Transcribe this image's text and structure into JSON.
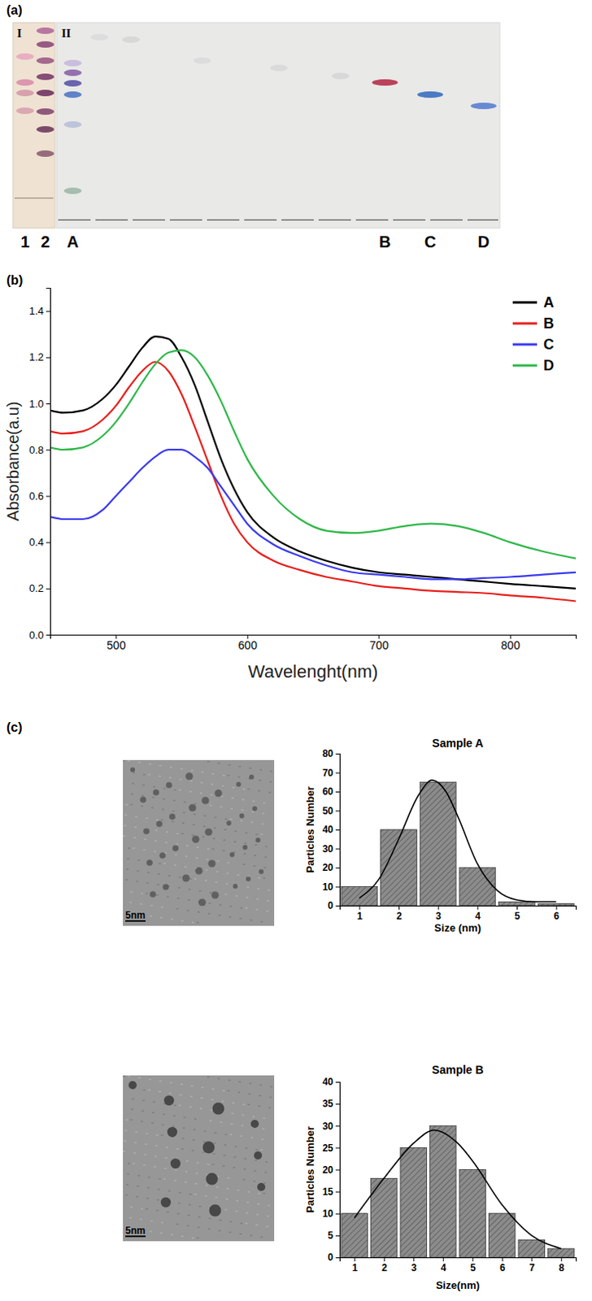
{
  "figure": {
    "panel_labels": [
      "(a)",
      "(b)",
      "(c)"
    ]
  },
  "tlc": {
    "plate_labels": [
      "I",
      "II"
    ],
    "lane_labels": [
      "1",
      "2",
      "A",
      "B",
      "C",
      "D"
    ]
  },
  "tem": {
    "scale_bar_labels": [
      "5nm",
      "5nm"
    ]
  },
  "chart_data": [
    {
      "type": "line",
      "x_label": "Wavelenght(nm)",
      "y_label": "Absorbance(a.u)",
      "x": [
        450,
        460,
        475,
        490,
        500,
        510,
        520,
        530,
        540,
        550,
        560,
        570,
        580,
        590,
        600,
        620,
        640,
        660,
        680,
        700,
        720,
        740,
        760,
        780,
        800,
        825,
        850
      ],
      "series": [
        {
          "name": "A",
          "color": "#000000",
          "values": [
            0.97,
            0.96,
            0.97,
            1.02,
            1.08,
            1.16,
            1.24,
            1.29,
            1.28,
            1.2,
            1.08,
            0.92,
            0.76,
            0.63,
            0.53,
            0.42,
            0.36,
            0.32,
            0.29,
            0.27,
            0.26,
            0.25,
            0.24,
            0.23,
            0.22,
            0.21,
            0.2
          ]
        },
        {
          "name": "B",
          "color": "#e8201c",
          "values": [
            0.88,
            0.87,
            0.88,
            0.93,
            0.99,
            1.07,
            1.14,
            1.18,
            1.14,
            1.04,
            0.9,
            0.75,
            0.6,
            0.48,
            0.4,
            0.32,
            0.28,
            0.25,
            0.23,
            0.21,
            0.2,
            0.19,
            0.185,
            0.18,
            0.17,
            0.16,
            0.145
          ]
        },
        {
          "name": "C",
          "color": "#3b3bf0",
          "values": [
            0.51,
            0.5,
            0.5,
            0.54,
            0.6,
            0.66,
            0.72,
            0.77,
            0.8,
            0.8,
            0.77,
            0.72,
            0.64,
            0.56,
            0.48,
            0.39,
            0.34,
            0.3,
            0.27,
            0.26,
            0.25,
            0.24,
            0.24,
            0.245,
            0.25,
            0.26,
            0.27
          ]
        },
        {
          "name": "D",
          "color": "#2fb84a",
          "values": [
            0.81,
            0.8,
            0.81,
            0.86,
            0.92,
            1.0,
            1.09,
            1.17,
            1.22,
            1.23,
            1.2,
            1.12,
            1.01,
            0.88,
            0.76,
            0.6,
            0.5,
            0.45,
            0.44,
            0.45,
            0.47,
            0.48,
            0.47,
            0.44,
            0.4,
            0.36,
            0.33
          ]
        }
      ],
      "xlim": [
        450,
        850
      ],
      "xticks": [
        500,
        600,
        700,
        800
      ],
      "ylim": [
        0,
        1.5
      ],
      "yticks": [
        {
          "value": 0,
          "label": "0.0"
        },
        0.2,
        0.4,
        0.6,
        0.8,
        {
          "value": 1,
          "label": "1.0"
        },
        1.2,
        1.4
      ],
      "legend": "upper right",
      "grid": false
    },
    {
      "type": "histogram",
      "title": "Sample A",
      "x_label": "Size (nm)",
      "y_label": "Particles Number",
      "bins": [
        0.5,
        1.5,
        2.5,
        3.5,
        4.5,
        5.5,
        6.5
      ],
      "counts": [
        10,
        40,
        65,
        20,
        2,
        1
      ],
      "color": "#8c8c8c",
      "fit": {
        "x": [
          1,
          1.5,
          2,
          2.5,
          2.85,
          3.2,
          3.5,
          4,
          4.5,
          5,
          5.5,
          6
        ],
        "values": [
          4,
          14,
          35,
          58,
          66,
          60,
          47,
          22,
          8,
          3,
          2,
          2
        ]
      },
      "xlim": [
        0.5,
        6.5
      ],
      "xticks": [
        1,
        2,
        3,
        4,
        5,
        6
      ],
      "ylim": [
        0,
        80
      ],
      "yticks": [
        0,
        10,
        20,
        30,
        40,
        50,
        60,
        70,
        80
      ],
      "grid": false
    },
    {
      "type": "histogram",
      "title": "Sample B",
      "x_label": "Size(nm)",
      "y_label": "Particles Number",
      "bins": [
        0.5,
        1.5,
        2.5,
        3.5,
        4.5,
        5.5,
        6.5,
        7.5,
        8.5
      ],
      "counts": [
        10,
        18,
        25,
        30,
        20,
        10,
        4,
        2
      ],
      "color": "#8c8c8c",
      "fit": {
        "x": [
          1,
          2,
          3,
          3.7,
          4.5,
          5,
          6,
          7,
          8
        ],
        "values": [
          9,
          18,
          26,
          29,
          26,
          22,
          12,
          5,
          2
        ]
      },
      "xlim": [
        0.5,
        8.5
      ],
      "xticks": [
        1,
        2,
        3,
        4,
        5,
        6,
        7,
        8
      ],
      "ylim": [
        0,
        40
      ],
      "yticks": [
        0,
        5,
        10,
        15,
        20,
        25,
        30,
        35,
        40
      ],
      "grid": false
    }
  ]
}
